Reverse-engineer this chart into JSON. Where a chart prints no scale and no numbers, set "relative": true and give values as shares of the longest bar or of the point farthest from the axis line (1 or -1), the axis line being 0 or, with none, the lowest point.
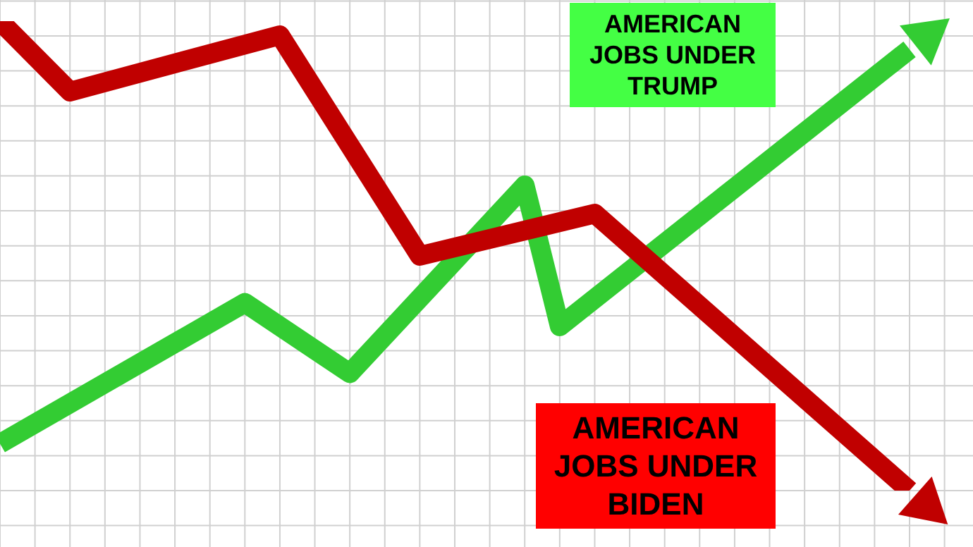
{
  "chart_data": {
    "type": "line",
    "relative": true,
    "grid": true,
    "legend": false,
    "marker": "none",
    "line_style": "solid",
    "categories": [
      null,
      null,
      null,
      null,
      null,
      null,
      null,
      null,
      null,
      null,
      null,
      null,
      null,
      null,
      null,
      null,
      null,
      null,
      null,
      null,
      null,
      null,
      null,
      null,
      null,
      null,
      null
    ],
    "series": [
      {
        "name": "AMERICAN JOBS UNDER BIDEN",
        "color": "#c00000",
        "values": [
          1.0,
          null,
          0.85,
          null,
          null,
          null,
          null,
          null,
          0.97,
          null,
          null,
          null,
          0.5,
          null,
          null,
          null,
          null,
          0.59,
          null,
          null,
          null,
          null,
          null,
          null,
          null,
          null,
          0.0
        ]
      },
      {
        "name": "AMERICAN JOBS UNDER TRUMP",
        "color": "#33cc33",
        "values": [
          0.1,
          null,
          null,
          null,
          null,
          null,
          null,
          0.4,
          null,
          null,
          0.25,
          null,
          null,
          null,
          null,
          0.65,
          0.35,
          null,
          null,
          null,
          null,
          null,
          null,
          null,
          null,
          null,
          0.94
        ]
      }
    ]
  }
}
